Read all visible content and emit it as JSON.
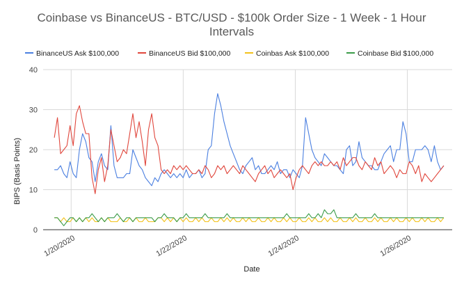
{
  "chart_data": {
    "type": "line",
    "title_line1": "Coinbase vs BinanceUS - BTC/USD - $100k Order Size - 1 Week - 1 Hour",
    "title_line2": "Intervals",
    "xlabel": "Date",
    "ylabel": "BIPS (Basis Points)",
    "ylim": [
      0,
      40
    ],
    "yticks": [
      "0",
      "10",
      "20",
      "30",
      "40"
    ],
    "xticks": [
      "1/20/2020",
      "1/22/2020",
      "1/24/2020",
      "1/26/2020"
    ],
    "x_range_days": [
      -0.5,
      6.8
    ],
    "legend_position": "top",
    "grid": true,
    "series": [
      {
        "name": "BinanceUS Ask $100,000",
        "color": "#4a7fe0",
        "values": [
          15,
          15,
          16,
          14,
          13,
          17,
          14,
          13,
          20,
          24,
          22,
          18,
          17,
          12,
          17,
          19,
          16,
          15,
          26,
          16,
          13,
          13,
          13,
          14,
          14,
          20,
          18,
          16,
          15,
          13,
          12,
          11,
          13,
          12,
          14,
          15,
          14,
          13,
          14,
          13,
          14,
          13,
          15,
          13,
          14,
          14,
          15,
          13,
          14,
          20,
          21,
          29,
          34,
          31,
          27,
          24,
          21,
          19,
          17,
          15,
          14,
          16,
          17,
          18,
          15,
          16,
          14,
          14,
          15,
          16,
          15,
          17,
          14,
          15,
          15,
          13,
          15,
          14,
          13,
          16,
          28,
          24,
          20,
          18,
          17,
          16,
          19,
          18,
          17,
          16,
          16,
          15,
          14,
          20,
          21,
          16,
          17,
          22,
          18,
          17,
          16,
          16,
          15,
          15,
          17,
          19,
          20,
          21,
          17,
          20,
          20,
          27,
          24,
          17,
          17,
          20,
          20,
          20,
          21,
          20,
          17,
          21,
          17,
          15,
          16
        ]
      },
      {
        "name": "BinanceUS Bid $100,000",
        "color": "#e0463c",
        "values": [
          23,
          28,
          19,
          20,
          21,
          26,
          21,
          29,
          31,
          27,
          24,
          24,
          13,
          9,
          15,
          18,
          12,
          16,
          25,
          21,
          17,
          18,
          20,
          19,
          24,
          29,
          23,
          27,
          22,
          16,
          25,
          29,
          23,
          21,
          15,
          14,
          15,
          14,
          16,
          15,
          16,
          15,
          16,
          15,
          14,
          14,
          15,
          14,
          16,
          15,
          13,
          14,
          16,
          15,
          16,
          14,
          15,
          16,
          15,
          14,
          16,
          15,
          14,
          13,
          12,
          14,
          15,
          16,
          14,
          15,
          13,
          14,
          15,
          14,
          13,
          14,
          10,
          13,
          15,
          16,
          15,
          14,
          16,
          17,
          16,
          17,
          16,
          16,
          17,
          16,
          17,
          15,
          18,
          16,
          17,
          18,
          18,
          16,
          15,
          17,
          16,
          15,
          18,
          16,
          17,
          14,
          15,
          16,
          15,
          13,
          15,
          14,
          14,
          17,
          16,
          14,
          16,
          12,
          14,
          13,
          12,
          13,
          14,
          15,
          16
        ]
      },
      {
        "name": "Coinbas Ask $100,000",
        "color": "#f2c11a",
        "values": [
          3,
          3,
          2,
          3,
          2,
          2,
          3,
          2,
          3,
          2,
          3,
          2,
          3,
          2,
          2,
          3,
          2,
          3,
          2,
          2,
          2,
          3,
          2,
          2,
          3,
          2,
          3,
          2,
          2,
          3,
          2,
          2,
          2,
          3,
          3,
          2,
          3,
          2,
          3,
          2,
          3,
          2,
          3,
          2,
          2,
          3,
          2,
          3,
          2,
          2,
          3,
          2,
          2,
          3,
          2,
          3,
          2,
          3,
          2,
          2,
          3,
          2,
          3,
          2,
          2,
          3,
          2,
          2,
          3,
          2,
          3,
          2,
          2,
          3,
          2,
          3,
          2,
          2,
          3,
          2,
          2,
          3,
          2,
          3,
          2,
          2,
          3,
          2,
          3,
          2,
          2,
          3,
          2,
          2,
          3,
          2,
          3,
          2,
          2,
          3,
          2,
          2,
          3,
          2,
          3,
          2,
          2,
          3,
          2,
          3,
          2,
          2,
          3,
          2,
          3,
          2,
          2,
          3,
          2,
          3,
          2,
          2,
          3,
          2,
          3
        ]
      },
      {
        "name": "Coinbase Bid $100,000",
        "color": "#3a9b48",
        "values": [
          3,
          3,
          2,
          1,
          2,
          3,
          3,
          2,
          3,
          2,
          3,
          3,
          4,
          3,
          2,
          3,
          2,
          3,
          3,
          3,
          4,
          3,
          2,
          3,
          3,
          2,
          3,
          3,
          3,
          3,
          3,
          3,
          2,
          3,
          3,
          4,
          3,
          3,
          3,
          2,
          3,
          3,
          4,
          3,
          3,
          3,
          3,
          3,
          4,
          3,
          3,
          3,
          3,
          3,
          3,
          4,
          3,
          3,
          3,
          3,
          3,
          3,
          3,
          3,
          3,
          3,
          3,
          3,
          3,
          3,
          3,
          3,
          3,
          3,
          4,
          3,
          3,
          3,
          3,
          3,
          3,
          4,
          3,
          3,
          4,
          3,
          5,
          4,
          4,
          5,
          3,
          3,
          3,
          3,
          3,
          3,
          4,
          3,
          3,
          3,
          3,
          3,
          4,
          3,
          3,
          3,
          3,
          3,
          3,
          3,
          3,
          3,
          3,
          3,
          3,
          3,
          3,
          3,
          3,
          3,
          3,
          3,
          3,
          3,
          3
        ]
      }
    ]
  }
}
